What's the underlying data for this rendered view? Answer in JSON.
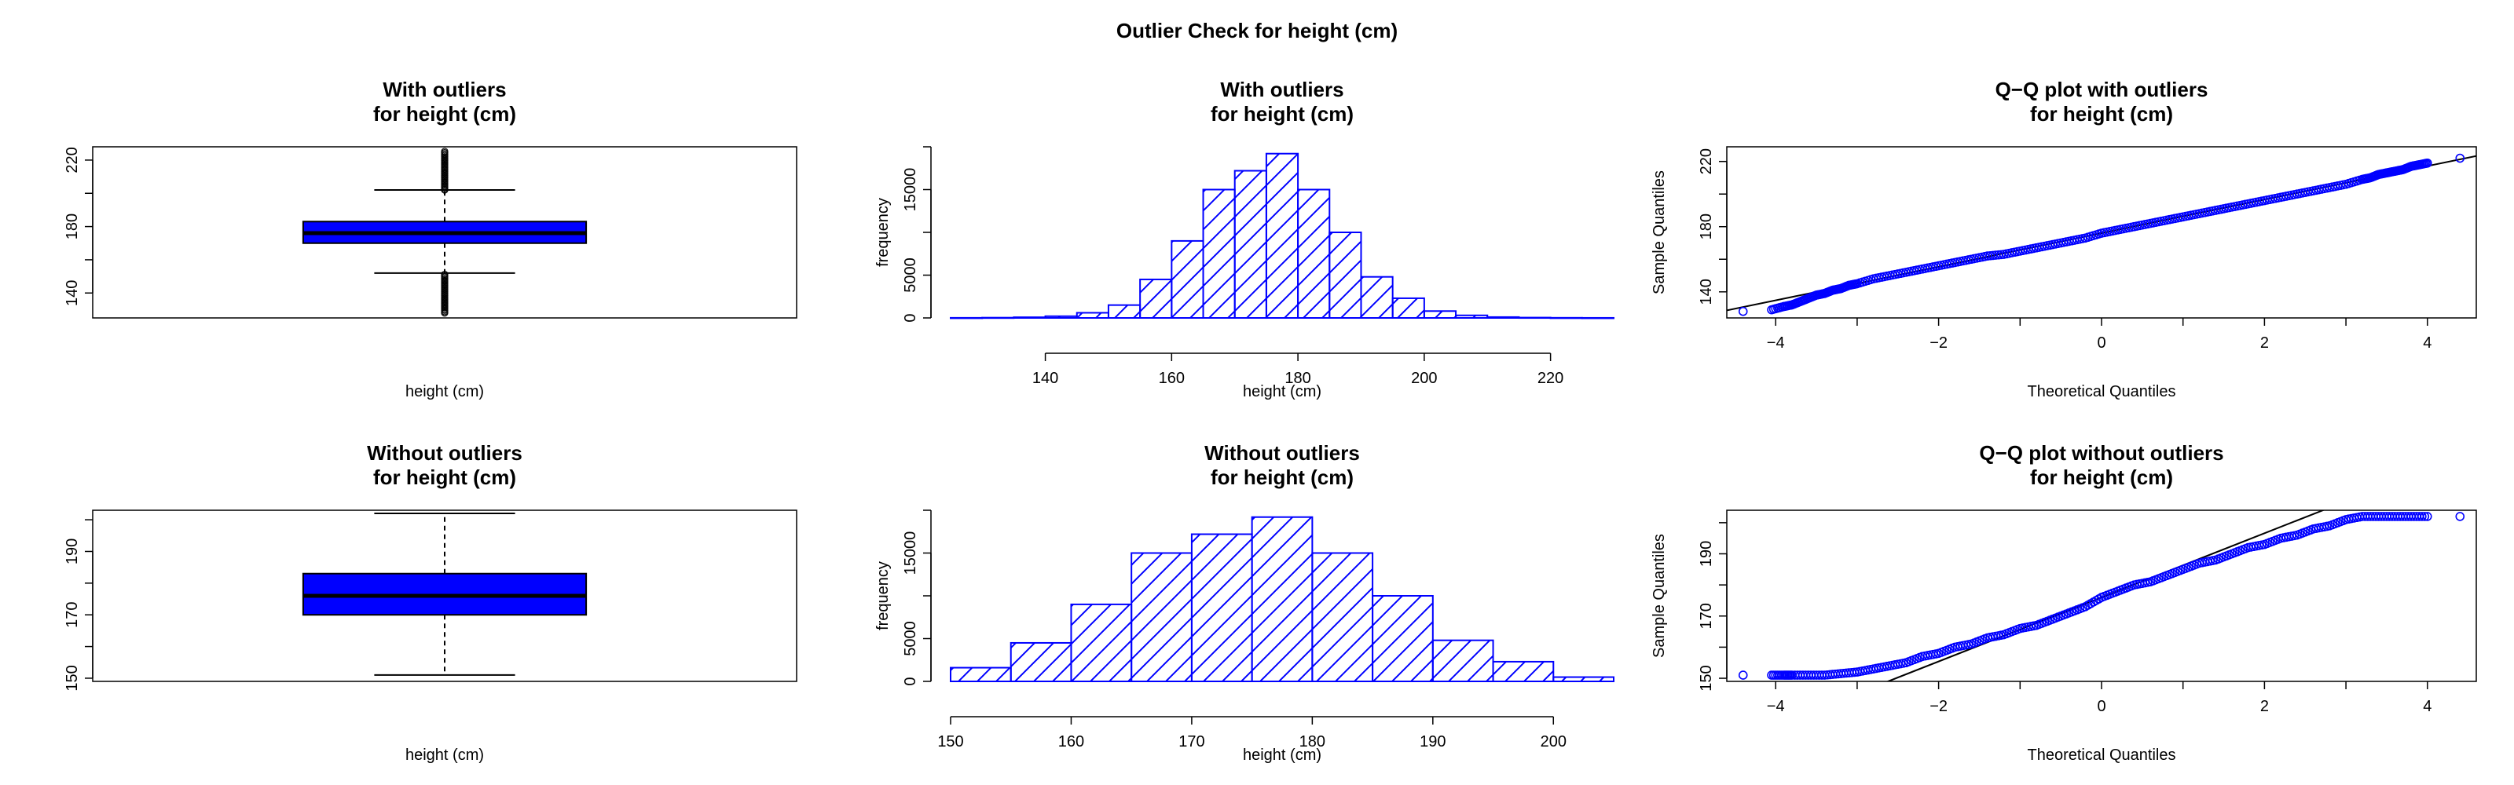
{
  "main_title": "Outlier Check for  height (cm)",
  "colors": {
    "fill": "#0000ff",
    "line": "#000000"
  },
  "panels": [
    {
      "title": [
        "With outliers",
        "for height (cm)"
      ],
      "xlabel": "height (cm)",
      "ylabel": ""
    },
    {
      "title": [
        "With outliers",
        "for height (cm)"
      ],
      "xlabel": "height (cm)",
      "ylabel": "frequency"
    },
    {
      "title": [
        "Q−Q plot with outliers",
        "for height (cm)"
      ],
      "xlabel": "Theoretical Quantiles",
      "ylabel": "Sample Quantiles"
    },
    {
      "title": [
        "Without outliers",
        "for height (cm)"
      ],
      "xlabel": "height (cm)",
      "ylabel": ""
    },
    {
      "title": [
        "Without outliers",
        "for height (cm)"
      ],
      "xlabel": "height (cm)",
      "ylabel": "frequency"
    },
    {
      "title": [
        "Q−Q plot without outliers",
        "for height (cm)"
      ],
      "xlabel": "Theoretical Quantiles",
      "ylabel": "Sample Quantiles"
    }
  ],
  "chart_data": [
    {
      "type": "box",
      "orientation": "vertical",
      "ylim": [
        125,
        228
      ],
      "yticks": [
        "140",
        "180",
        "220"
      ],
      "stats": {
        "lower_whisker": 152,
        "q1": 170,
        "median": 176,
        "q3": 183,
        "upper_whisker": 202
      },
      "outliers_low": [
        128,
        152
      ],
      "outliers_high": [
        202,
        226
      ]
    },
    {
      "type": "histogram",
      "xlim": [
        125,
        230
      ],
      "ylim": [
        0,
        20000
      ],
      "xticks": [
        "140",
        "160",
        "180",
        "200",
        "220"
      ],
      "yticks": [
        "0",
        "5000",
        "15000"
      ],
      "bins": [
        [
          125,
          130,
          10
        ],
        [
          130,
          135,
          30
        ],
        [
          135,
          140,
          80
        ],
        [
          140,
          145,
          200
        ],
        [
          145,
          150,
          600
        ],
        [
          150,
          155,
          1500
        ],
        [
          155,
          160,
          4500
        ],
        [
          160,
          165,
          9000
        ],
        [
          165,
          170,
          15000
        ],
        [
          170,
          175,
          17200
        ],
        [
          175,
          180,
          19200
        ],
        [
          180,
          185,
          15000
        ],
        [
          185,
          190,
          10000
        ],
        [
          190,
          195,
          4800
        ],
        [
          195,
          200,
          2300
        ],
        [
          200,
          205,
          800
        ],
        [
          205,
          210,
          300
        ],
        [
          210,
          215,
          100
        ],
        [
          215,
          220,
          40
        ],
        [
          220,
          225,
          15
        ],
        [
          225,
          230,
          5
        ]
      ]
    },
    {
      "type": "qq",
      "xlim": [
        -4.6,
        4.6
      ],
      "ylim": [
        124,
        229
      ],
      "xticks": [
        "−4",
        "−2",
        "0",
        "2",
        "4"
      ],
      "yticks": [
        "140",
        "180",
        "220"
      ],
      "theoretical": [
        -4.4,
        -4.05,
        -3.9,
        -3.8,
        -3.7,
        -3.6,
        -3.5,
        -3.4,
        -3.3,
        -3.2,
        -3.1,
        -3.0,
        -2.8,
        -2.6,
        -2.4,
        -2.2,
        -2.0,
        -1.8,
        -1.6,
        -1.4,
        -1.2,
        -1.0,
        -0.8,
        -0.6,
        -0.4,
        -0.2,
        0,
        0.2,
        0.4,
        0.6,
        0.8,
        1.0,
        1.2,
        1.4,
        1.6,
        1.8,
        2.0,
        2.2,
        2.4,
        2.6,
        2.8,
        3.0,
        3.2,
        3.3,
        3.4,
        3.5,
        3.6,
        3.7,
        3.8,
        3.9,
        4.0,
        4.4
      ],
      "sample": [
        128,
        129,
        131,
        132,
        134,
        136,
        138,
        139,
        141,
        142,
        144,
        145,
        148,
        150,
        152,
        154,
        156,
        158,
        160,
        162,
        163,
        165,
        167,
        169,
        171,
        173,
        176,
        178,
        180,
        182,
        184,
        186,
        188,
        190,
        192,
        194,
        196,
        198,
        200,
        202,
        204,
        206,
        209,
        210,
        212,
        213,
        214,
        215,
        217,
        218,
        219,
        222
      ],
      "line": {
        "intercept": 176,
        "slope": 10.3
      }
    },
    {
      "type": "box",
      "orientation": "vertical",
      "ylim": [
        149,
        203
      ],
      "yticks": [
        "150",
        "170",
        "190"
      ],
      "stats": {
        "lower_whisker": 151,
        "q1": 170,
        "median": 176,
        "q3": 183,
        "upper_whisker": 202
      }
    },
    {
      "type": "histogram",
      "xlim": [
        150,
        205
      ],
      "ylim": [
        0,
        20000
      ],
      "xticks": [
        "150",
        "160",
        "170",
        "180",
        "190",
        "200"
      ],
      "yticks": [
        "0",
        "5000",
        "15000"
      ],
      "bins": [
        [
          150,
          155,
          1600
        ],
        [
          155,
          160,
          4500
        ],
        [
          160,
          165,
          9000
        ],
        [
          165,
          170,
          15000
        ],
        [
          170,
          175,
          17200
        ],
        [
          175,
          180,
          19200
        ],
        [
          180,
          185,
          15000
        ],
        [
          185,
          190,
          10000
        ],
        [
          190,
          195,
          4800
        ],
        [
          195,
          200,
          2300
        ],
        [
          200,
          205,
          500
        ]
      ]
    },
    {
      "type": "qq",
      "xlim": [
        -4.6,
        4.6
      ],
      "ylim": [
        149,
        204
      ],
      "xticks": [
        "−4",
        "−2",
        "0",
        "2",
        "4"
      ],
      "yticks": [
        "150",
        "170",
        "190"
      ],
      "theoretical": [
        -4.4,
        -4.05,
        -3.9,
        -3.8,
        -3.6,
        -3.4,
        -3.2,
        -3.0,
        -2.8,
        -2.6,
        -2.4,
        -2.2,
        -2.0,
        -1.8,
        -1.6,
        -1.4,
        -1.2,
        -1.0,
        -0.8,
        -0.6,
        -0.4,
        -0.2,
        0,
        0.2,
        0.4,
        0.6,
        0.8,
        1.0,
        1.2,
        1.4,
        1.6,
        1.8,
        2.0,
        2.2,
        2.4,
        2.6,
        2.8,
        3.0,
        3.2,
        3.4,
        3.6,
        3.8,
        4.0,
        4.4
      ],
      "sample": [
        151,
        151,
        151,
        151,
        151,
        151,
        151.5,
        152,
        153,
        154,
        155,
        157,
        158,
        160,
        161,
        163,
        164,
        166,
        167,
        169,
        171,
        173,
        176,
        178,
        180,
        181,
        183,
        185,
        187,
        188,
        190,
        192,
        193,
        195,
        196,
        198,
        199,
        201,
        202,
        202,
        202,
        202,
        202,
        202
      ],
      "line": {
        "intercept": 176,
        "slope": 10.3
      }
    }
  ]
}
